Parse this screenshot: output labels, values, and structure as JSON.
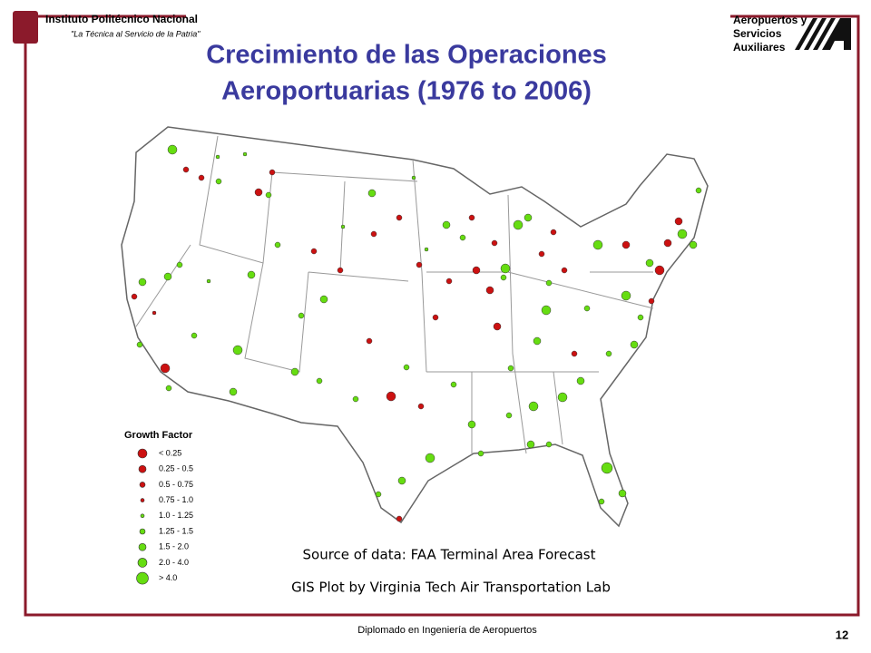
{
  "header": {
    "institution": "Instituto Politécnico Nacional",
    "motto": "\"La Técnica al Servicio de la Patria\"",
    "unit": [
      "Aeropuertos y",
      "Servicios",
      "Auxiliares"
    ]
  },
  "title": [
    "Crecimiento de las Operaciones",
    "Aeroportuarias (1976 to 2006)"
  ],
  "legend": {
    "title": "Growth Factor",
    "items": [
      "< 0.25",
      "0.25 - 0.5",
      "0.5 - 0.75",
      "0.75 - 1.0",
      "1.0 - 1.25",
      "1.25 - 1.5",
      "1.5 - 2.0",
      "2.0 - 4.0",
      "> 4.0"
    ]
  },
  "source": [
    "Source of data: FAA Terminal Area Forecast",
    "GIS Plot by Virginia Tech Air Transportation Lab"
  ],
  "footer": {
    "text": "Diplomado en Ingeniería de Aeropuertos",
    "page": 12
  }
}
